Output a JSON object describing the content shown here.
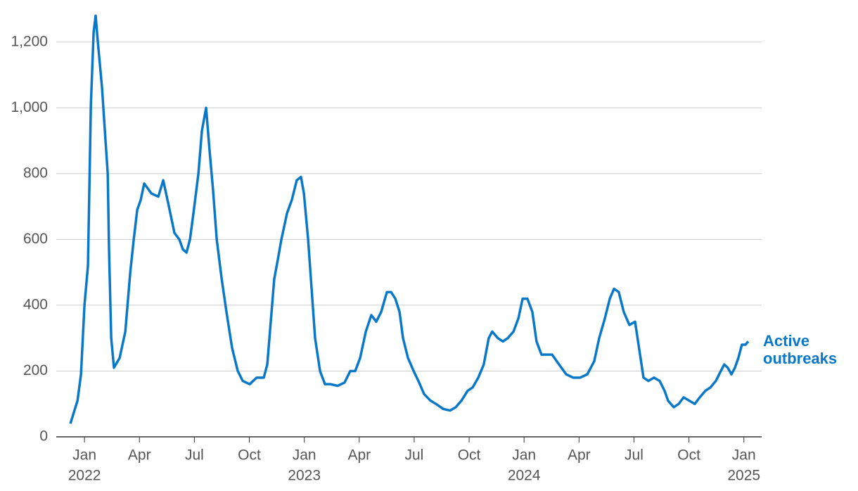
{
  "chart_data": {
    "type": "line",
    "x": [
      -0.77,
      -0.38,
      -0.19,
      0,
      0.19,
      0.35,
      0.5,
      0.61,
      0.73,
      0.96,
      1.15,
      1.27,
      1.34,
      1.46,
      1.61,
      1.92,
      2.23,
      2.5,
      2.69,
      2.88,
      3.07,
      3.26,
      3.65,
      4.03,
      4.3,
      4.61,
      4.91,
      5.18,
      5.37,
      5.57,
      5.76,
      5.95,
      6.22,
      6.41,
      6.64,
      6.83,
      7.02,
      7.22,
      7.49,
      7.75,
      8.06,
      8.37,
      8.64,
      9.02,
      9.4,
      9.79,
      9.98,
      10.17,
      10.36,
      10.56,
      10.75,
      11.06,
      11.32,
      11.59,
      11.82,
      11.98,
      12.21,
      12.4,
      12.59,
      12.86,
      13.13,
      13.44,
      13.82,
      14.2,
      14.51,
      14.78,
      15.05,
      15.36,
      15.66,
      15.93,
      16.2,
      16.51,
      16.74,
      16.97,
      17.2,
      17.39,
      17.66,
      17.97,
      18.23,
      18.54,
      18.89,
      19.19,
      19.58,
      19.96,
      20.27,
      20.58,
      20.92,
      21.19,
      21.5,
      21.8,
      22.07,
      22.26,
      22.57,
      22.84,
      23.11,
      23.42,
      23.69,
      23.92,
      24.18,
      24.45,
      24.68,
      24.95,
      25.22,
      25.53,
      25.91,
      26.3,
      26.68,
      27.06,
      27.45,
      27.83,
      28.1,
      28.41,
      28.68,
      28.91,
      29.17,
      29.44,
      29.75,
      30.06,
      30.33,
      30.52,
      30.79,
      31.09,
      31.4,
      31.67,
      31.86,
      32.17,
      32.44,
      32.71,
      33.01,
      33.32,
      33.59,
      33.9,
      34.17,
      34.47,
      34.74,
      34.93,
      35.12,
      35.32,
      35.51,
      35.7,
      35.89,
      36.08,
      36.24
    ],
    "series": [
      {
        "name": "Active outbreaks",
        "color": "#0a78c8",
        "values": [
          40,
          110,
          190,
          400,
          520,
          1010,
          1230,
          1280,
          1200,
          1060,
          900,
          800,
          570,
          300,
          210,
          240,
          320,
          500,
          600,
          690,
          720,
          770,
          740,
          730,
          780,
          700,
          620,
          600,
          570,
          560,
          600,
          680,
          800,
          930,
          1000,
          870,
          750,
          600,
          480,
          380,
          270,
          200,
          170,
          160,
          180,
          180,
          220,
          350,
          480,
          540,
          600,
          680,
          720,
          780,
          790,
          740,
          600,
          450,
          300,
          200,
          160,
          160,
          155,
          165,
          200,
          200,
          240,
          320,
          370,
          350,
          380,
          440,
          440,
          420,
          380,
          300,
          240,
          200,
          170,
          130,
          110,
          100,
          85,
          80,
          90,
          110,
          140,
          150,
          180,
          220,
          300,
          320,
          300,
          290,
          300,
          320,
          360,
          420,
          420,
          380,
          290,
          250,
          250,
          250,
          220,
          190,
          180,
          180,
          190,
          230,
          300,
          360,
          420,
          450,
          440,
          380,
          340,
          350,
          250,
          180,
          170,
          180,
          170,
          140,
          110,
          90,
          100,
          120,
          110,
          100,
          120,
          140,
          150,
          170,
          200,
          220,
          210,
          190,
          210,
          240,
          280,
          280,
          290
        ]
      }
    ],
    "xlim": [
      -1.54,
      36.97
    ],
    "ylim": [
      0,
      1300
    ],
    "xticks": [
      {
        "value": 0,
        "label": "Jan"
      },
      {
        "value": 3,
        "label": "Apr"
      },
      {
        "value": 6,
        "label": "Jul"
      },
      {
        "value": 9,
        "label": "Oct"
      },
      {
        "value": 12,
        "label": "Jan"
      },
      {
        "value": 15,
        "label": "Apr"
      },
      {
        "value": 18,
        "label": "Jul"
      },
      {
        "value": 21,
        "label": "Oct"
      },
      {
        "value": 24,
        "label": "Jan"
      },
      {
        "value": 27,
        "label": "Apr"
      },
      {
        "value": 30,
        "label": "Jul"
      },
      {
        "value": 33,
        "label": "Oct"
      },
      {
        "value": 36,
        "label": "Jan"
      }
    ],
    "x_year_labels": [
      {
        "value": 0,
        "label": "2022"
      },
      {
        "value": 12,
        "label": "2023"
      },
      {
        "value": 24,
        "label": "2024"
      },
      {
        "value": 36,
        "label": "2025"
      }
    ],
    "yticks": [
      0,
      200,
      400,
      600,
      800,
      {
        "value": 1000,
        "label": "1,000"
      },
      {
        "value": 1200,
        "label": "1,200"
      }
    ],
    "grid": true
  }
}
